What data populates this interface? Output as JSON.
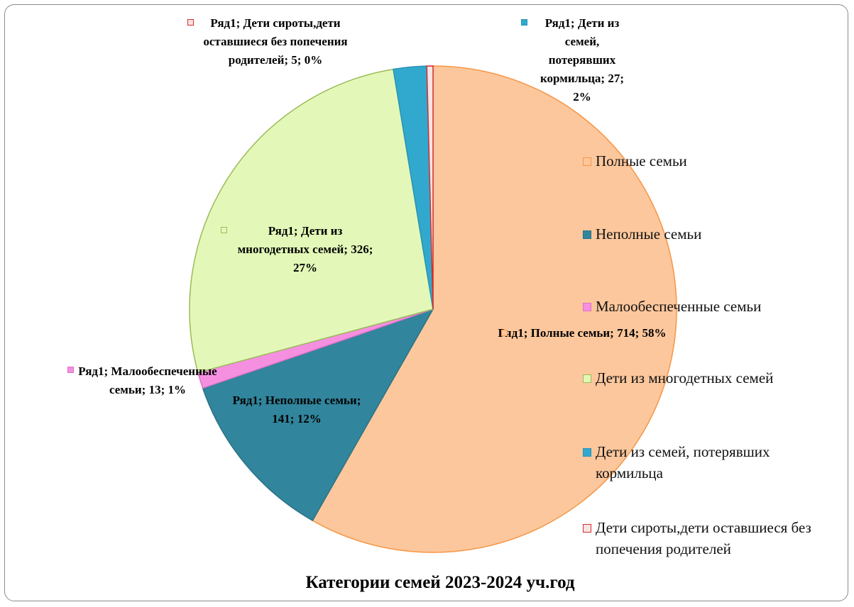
{
  "chart_data": {
    "type": "pie",
    "title": "Категории семей  2023-2024 уч.год",
    "series_name": "Ряд1",
    "categories": [
      "Полные семьи",
      "Неполные семьи",
      "Малообеспеченные семьи",
      "Дети из многодетных семей",
      "Дети из семей, потерявших кормильца",
      "Дети сироты,дети оставшиеся без попечения родителей"
    ],
    "values": [
      714,
      141,
      13,
      326,
      27,
      5
    ],
    "value_labels": [
      "Ряд1; Полные семьи; 714; 58%",
      "Ряд1; Неполные семьи; 141; 12%",
      "Ряд1; Малообеспеченные семьи; 13; 1%",
      "Ряд1; Дети из многодетных семей; 326; 27%",
      "Ряд1; Дети из семей, потерявших кормильца; 27; 2%",
      "Ряд1; Дети сироты,дети оставшиеся без попечения родителей; 5; 0%"
    ],
    "colors": [
      "#fcc79c",
      "#31859c",
      "#f590e0",
      "#e3f8b8",
      "#31a9cf",
      "#fde2e2"
    ],
    "border_colors": [
      "#f79646",
      "#2b7386",
      "#e070c8",
      "#9bbb59",
      "#2a93b5",
      "#d03030"
    ],
    "legend": "right"
  }
}
